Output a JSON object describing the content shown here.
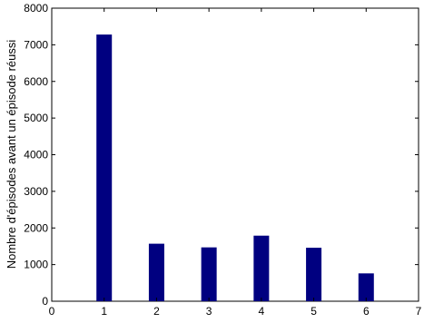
{
  "chart_data": {
    "type": "bar",
    "title": "",
    "xlabel": "",
    "ylabel": "Nombre d'épisodes avant un épisode réussi",
    "x": [
      1,
      2,
      3,
      4,
      5,
      6
    ],
    "values": [
      7280,
      1570,
      1470,
      1790,
      1460,
      760
    ],
    "xlim": [
      0,
      7
    ],
    "ylim": [
      0,
      8000
    ],
    "xticks": [
      0,
      1,
      2,
      3,
      4,
      5,
      6,
      7
    ],
    "yticks": [
      0,
      1000,
      2000,
      3000,
      4000,
      5000,
      6000,
      7000,
      8000
    ],
    "bar_color": "#000080",
    "grid": false,
    "legend": "none"
  }
}
